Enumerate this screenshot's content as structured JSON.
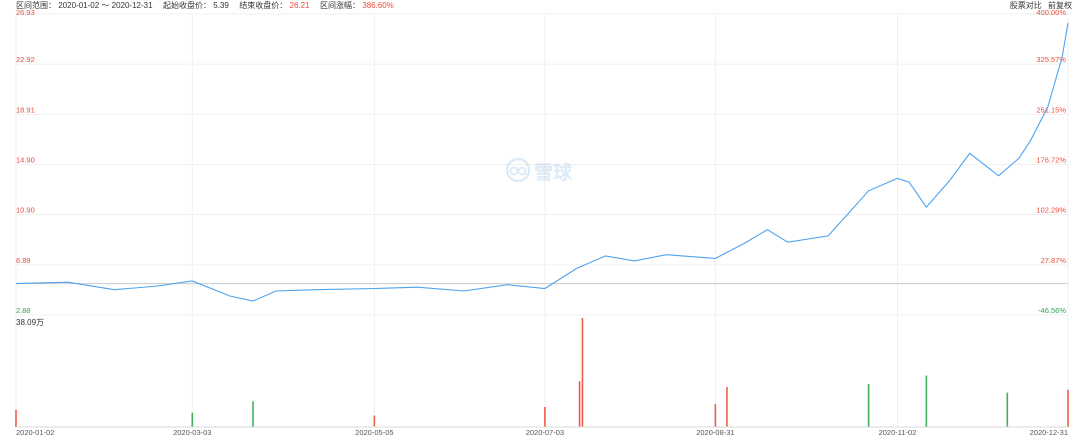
{
  "header": {
    "range_label": "区间范围：",
    "range_start": "2020-01-02",
    "range_sep": "～",
    "range_end": "2020-12-31",
    "start_close_label": "起始收盘价：",
    "start_close": "5.39",
    "end_close_label": "结束收盘价：",
    "end_close": "26.21",
    "change_label": "区间涨幅：",
    "change": "386.60%",
    "compare_button": "股票对比",
    "adjust_button": "前复权"
  },
  "watermark": {
    "icon": "snowball-logo-icon",
    "text": "雪球"
  },
  "colors": {
    "line": "#4da3ee",
    "up": "#f04a3a",
    "down": "#2ea84a",
    "grid": "#f0f0f0",
    "baseline": "#cccccc"
  },
  "chart_data": {
    "type": "line",
    "y_left_ticks": [
      "26.93",
      "22.92",
      "18.91",
      "14.90",
      "10.90",
      "6.89",
      "2.88"
    ],
    "y_right_ticks": [
      "400.00%",
      "325.57%",
      "251.15%",
      "176.72%",
      "102.29%",
      "27.87%",
      "-46.56%"
    ],
    "ylim": [
      2.88,
      26.93
    ],
    "baseline": 5.39,
    "x_ticks": [
      "2020-01-02",
      "2020-03-03",
      "2020-05-05",
      "2020-07-03",
      "2020-08-31",
      "2020-11-02",
      "2020-12-31"
    ],
    "volume_max_label": "38.09万",
    "series": [
      {
        "dates": [
          "2020-01-02",
          "2020-01-20",
          "2020-02-05",
          "2020-02-20",
          "2020-03-03",
          "2020-03-16",
          "2020-03-24",
          "2020-04-01",
          "2020-04-15",
          "2020-05-05",
          "2020-05-20",
          "2020-06-05",
          "2020-06-20",
          "2020-07-03",
          "2020-07-14",
          "2020-07-24",
          "2020-08-03",
          "2020-08-14",
          "2020-08-31",
          "2020-09-10",
          "2020-09-18",
          "2020-09-25",
          "2020-10-09",
          "2020-10-16",
          "2020-10-23",
          "2020-11-02",
          "2020-11-06",
          "2020-11-12",
          "2020-11-20",
          "2020-11-27",
          "2020-12-07",
          "2020-12-14",
          "2020-12-18",
          "2020-12-24",
          "2020-12-29",
          "2020-12-31"
        ],
        "close": [
          5.39,
          5.5,
          4.9,
          5.2,
          5.6,
          4.4,
          4.0,
          4.8,
          4.9,
          5.0,
          5.1,
          4.8,
          5.3,
          5.0,
          6.6,
          7.6,
          7.2,
          7.7,
          7.4,
          8.6,
          9.7,
          8.7,
          9.2,
          11.0,
          12.8,
          13.8,
          13.5,
          11.5,
          13.6,
          15.8,
          14.0,
          15.4,
          16.8,
          19.5,
          23.5,
          26.21
        ]
      }
    ],
    "volume": [
      {
        "date": "2020-01-02",
        "value": 6,
        "color": "red"
      },
      {
        "date": "2020-03-03",
        "value": 5,
        "color": "green"
      },
      {
        "date": "2020-03-24",
        "value": 9,
        "color": "green"
      },
      {
        "date": "2020-05-05",
        "value": 4,
        "color": "red"
      },
      {
        "date": "2020-07-03",
        "value": 7,
        "color": "red"
      },
      {
        "date": "2020-07-15",
        "value": 16,
        "color": "red"
      },
      {
        "date": "2020-07-16",
        "value": 38.09,
        "color": "red"
      },
      {
        "date": "2020-08-31",
        "value": 8,
        "color": "red"
      },
      {
        "date": "2020-09-04",
        "value": 14,
        "color": "red"
      },
      {
        "date": "2020-10-23",
        "value": 15,
        "color": "green"
      },
      {
        "date": "2020-11-12",
        "value": 18,
        "color": "green"
      },
      {
        "date": "2020-12-10",
        "value": 12,
        "color": "green"
      },
      {
        "date": "2020-12-31",
        "value": 13,
        "color": "red"
      }
    ]
  }
}
